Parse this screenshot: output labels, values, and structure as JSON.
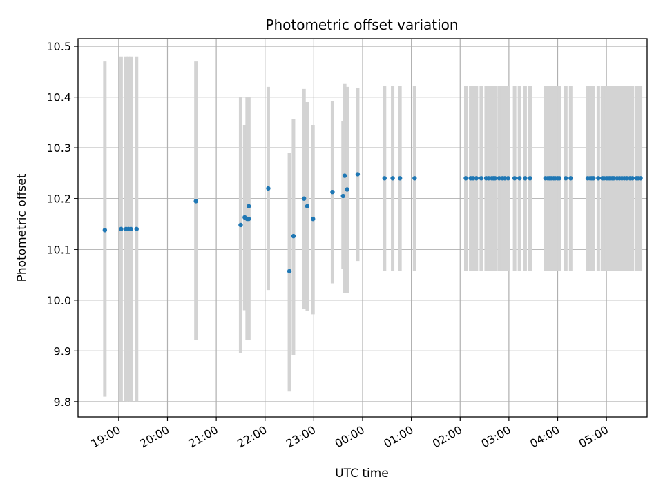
{
  "chart_data": {
    "type": "scatter",
    "title": "Photometric offset variation",
    "xlabel": "UTC time",
    "ylabel": "Photometric offset",
    "grid": true,
    "colors": {
      "point": "#1f77b4",
      "errorbar": "#d3d3d3"
    },
    "x_ticks": [
      "19:00",
      "20:00",
      "21:00",
      "22:00",
      "23:00",
      "00:00",
      "01:00",
      "02:00",
      "03:00",
      "04:00",
      "05:00"
    ],
    "y_ticks": [
      "9.8",
      "9.9",
      "10.0",
      "10.1",
      "10.2",
      "10.3",
      "10.4",
      "10.5"
    ],
    "xlim": [
      "18:10",
      "05:50"
    ],
    "ylim": [
      9.77,
      10.515
    ],
    "series": [
      {
        "x": [
          "18:43",
          "19:03",
          "19:09",
          "19:12",
          "19:15",
          "19:22",
          "20:35",
          "21:30",
          "21:35",
          "21:38",
          "21:40",
          "21:40",
          "22:04",
          "22:30",
          "22:35",
          "22:48",
          "22:52",
          "22:59",
          "23:23",
          "23:36",
          "23:38",
          "23:41",
          "23:54",
          "00:27",
          "00:37",
          "00:46",
          "01:04",
          "02:07",
          "02:13",
          "02:16",
          "02:20",
          "02:26",
          "02:32",
          "02:35",
          "02:39",
          "02:41",
          "02:43",
          "02:48",
          "02:52",
          "02:55",
          "02:59",
          "03:07",
          "03:13",
          "03:20",
          "03:26",
          "03:45",
          "03:48",
          "03:50",
          "03:52",
          "03:55",
          "03:57",
          "04:00",
          "04:02",
          "04:10",
          "04:16",
          "04:37",
          "04:40",
          "04:42",
          "04:44",
          "04:50",
          "04:55",
          "04:57",
          "05:00",
          "05:02",
          "05:04",
          "05:07",
          "05:09",
          "05:13",
          "05:16",
          "05:19",
          "05:22",
          "05:25",
          "05:29",
          "05:32",
          "05:37",
          "05:39",
          "05:42"
        ],
        "y": [
          10.138,
          10.14,
          10.14,
          10.14,
          10.14,
          10.14,
          10.195,
          10.148,
          10.163,
          10.16,
          10.185,
          10.16,
          10.22,
          10.057,
          10.126,
          10.2,
          10.185,
          10.16,
          10.213,
          10.205,
          10.245,
          10.218,
          10.248,
          10.24,
          10.24,
          10.24,
          10.24,
          10.24,
          10.24,
          10.24,
          10.24,
          10.24,
          10.24,
          10.24,
          10.24,
          10.24,
          10.24,
          10.24,
          10.24,
          10.24,
          10.24,
          10.24,
          10.24,
          10.24,
          10.24,
          10.24,
          10.24,
          10.24,
          10.24,
          10.24,
          10.24,
          10.24,
          10.24,
          10.24,
          10.24,
          10.24,
          10.24,
          10.24,
          10.24,
          10.24,
          10.24,
          10.24,
          10.24,
          10.24,
          10.24,
          10.24,
          10.24,
          10.24,
          10.24,
          10.24,
          10.24,
          10.24,
          10.24,
          10.24,
          10.24,
          10.24,
          10.24
        ],
        "y_low": [
          9.81,
          9.8,
          9.8,
          9.8,
          9.8,
          9.8,
          9.922,
          9.895,
          9.98,
          9.922,
          9.922,
          9.922,
          10.02,
          9.82,
          9.892,
          9.982,
          9.978,
          9.972,
          10.033,
          10.062,
          10.014,
          10.014,
          10.077,
          10.058,
          10.058,
          10.058,
          10.058,
          10.058,
          10.058,
          10.058,
          10.058,
          10.058,
          10.058,
          10.058,
          10.058,
          10.058,
          10.058,
          10.058,
          10.058,
          10.058,
          10.058,
          10.058,
          10.058,
          10.058,
          10.058,
          10.058,
          10.058,
          10.058,
          10.058,
          10.058,
          10.058,
          10.058,
          10.058,
          10.058,
          10.058,
          10.058,
          10.058,
          10.058,
          10.058,
          10.058,
          10.058,
          10.058,
          10.058,
          10.058,
          10.058,
          10.058,
          10.058,
          10.058,
          10.058,
          10.058,
          10.058,
          10.058,
          10.058,
          10.058,
          10.058,
          10.058,
          10.058
        ],
        "y_high": [
          10.47,
          10.48,
          10.48,
          10.48,
          10.48,
          10.48,
          10.47,
          10.4,
          10.345,
          10.4,
          10.4,
          10.4,
          10.42,
          10.29,
          10.357,
          10.416,
          10.39,
          10.345,
          10.392,
          10.352,
          10.427,
          10.42,
          10.418,
          10.422,
          10.422,
          10.422,
          10.422,
          10.422,
          10.422,
          10.422,
          10.422,
          10.422,
          10.422,
          10.422,
          10.422,
          10.422,
          10.422,
          10.422,
          10.422,
          10.422,
          10.422,
          10.422,
          10.422,
          10.422,
          10.422,
          10.422,
          10.422,
          10.422,
          10.422,
          10.422,
          10.422,
          10.422,
          10.422,
          10.422,
          10.422,
          10.422,
          10.422,
          10.422,
          10.422,
          10.422,
          10.422,
          10.422,
          10.422,
          10.422,
          10.422,
          10.422,
          10.422,
          10.422,
          10.422,
          10.422,
          10.422,
          10.422,
          10.422,
          10.422,
          10.422,
          10.422,
          10.422
        ]
      }
    ]
  }
}
